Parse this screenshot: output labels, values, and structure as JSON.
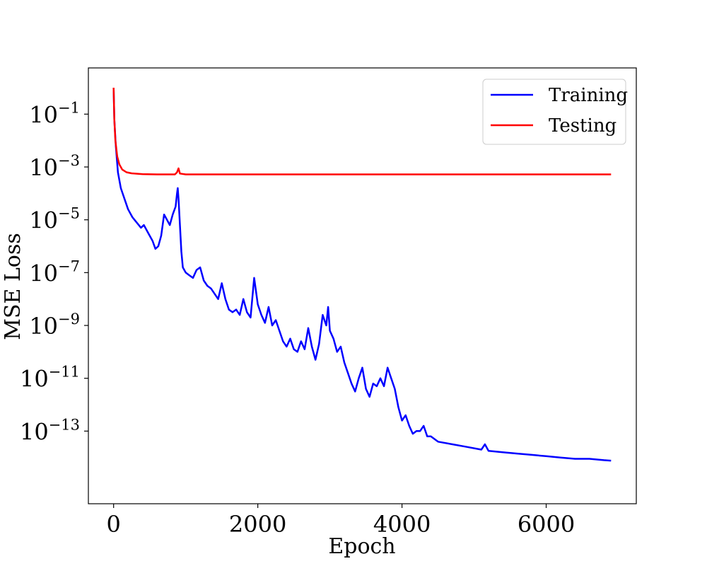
{
  "chart_data": {
    "type": "line",
    "xlabel": "Epoch",
    "ylabel": "MSE Loss",
    "y_scale": "log",
    "grid": false,
    "legend_placement": "top-right",
    "xlim": [
      -350,
      7250
    ],
    "ylim_exponent": [
      -15.75,
      0.75
    ],
    "x_ticks": [
      0,
      2000,
      4000,
      6000
    ],
    "x_tick_labels": [
      "0",
      "2000",
      "4000",
      "6000"
    ],
    "y_ticks": [
      -1,
      -3,
      -5,
      -7,
      -9,
      -11,
      -13
    ],
    "y_tick_labels": [
      {
        "base": "10",
        "exp": "−1"
      },
      {
        "base": "10",
        "exp": "−3"
      },
      {
        "base": "10",
        "exp": "−5"
      },
      {
        "base": "10",
        "exp": "−7"
      },
      {
        "base": "10",
        "exp": "−9"
      },
      {
        "base": "10",
        "exp": "−11"
      },
      {
        "base": "10",
        "exp": "−13"
      }
    ],
    "series": [
      {
        "name": "Training",
        "color": "#0000ff",
        "points": [
          [
            0,
            0.0
          ],
          [
            10,
            -1.2
          ],
          [
            30,
            -2.2
          ],
          [
            60,
            -3.2
          ],
          [
            100,
            -3.8
          ],
          [
            150,
            -4.2
          ],
          [
            200,
            -4.6
          ],
          [
            260,
            -4.9
          ],
          [
            320,
            -5.1
          ],
          [
            380,
            -5.3
          ],
          [
            420,
            -5.2
          ],
          [
            460,
            -5.4
          ],
          [
            500,
            -5.6
          ],
          [
            540,
            -5.8
          ],
          [
            580,
            -6.1
          ],
          [
            620,
            -6.0
          ],
          [
            660,
            -5.6
          ],
          [
            700,
            -4.8
          ],
          [
            740,
            -5.0
          ],
          [
            780,
            -5.2
          ],
          [
            820,
            -4.8
          ],
          [
            860,
            -4.5
          ],
          [
            880,
            -4.0
          ],
          [
            890,
            -3.8
          ],
          [
            900,
            -4.2
          ],
          [
            920,
            -5.2
          ],
          [
            940,
            -6.2
          ],
          [
            960,
            -6.8
          ],
          [
            1000,
            -7.0
          ],
          [
            1050,
            -7.1
          ],
          [
            1100,
            -7.2
          ],
          [
            1150,
            -6.9
          ],
          [
            1200,
            -6.8
          ],
          [
            1250,
            -7.3
          ],
          [
            1300,
            -7.5
          ],
          [
            1350,
            -7.6
          ],
          [
            1400,
            -7.8
          ],
          [
            1450,
            -8.0
          ],
          [
            1500,
            -7.4
          ],
          [
            1550,
            -8.0
          ],
          [
            1600,
            -8.4
          ],
          [
            1650,
            -8.5
          ],
          [
            1700,
            -8.4
          ],
          [
            1750,
            -8.6
          ],
          [
            1800,
            -8.0
          ],
          [
            1850,
            -8.5
          ],
          [
            1900,
            -8.7
          ],
          [
            1950,
            -7.2
          ],
          [
            2000,
            -8.2
          ],
          [
            2050,
            -8.6
          ],
          [
            2100,
            -8.9
          ],
          [
            2150,
            -8.3
          ],
          [
            2200,
            -9.0
          ],
          [
            2250,
            -8.8
          ],
          [
            2300,
            -9.2
          ],
          [
            2350,
            -9.6
          ],
          [
            2400,
            -9.8
          ],
          [
            2450,
            -9.5
          ],
          [
            2500,
            -9.9
          ],
          [
            2550,
            -10.0
          ],
          [
            2600,
            -9.6
          ],
          [
            2650,
            -9.9
          ],
          [
            2700,
            -9.1
          ],
          [
            2750,
            -9.8
          ],
          [
            2800,
            -10.3
          ],
          [
            2850,
            -9.7
          ],
          [
            2900,
            -8.6
          ],
          [
            2950,
            -9.0
          ],
          [
            2975,
            -8.3
          ],
          [
            3000,
            -9.2
          ],
          [
            3050,
            -9.5
          ],
          [
            3100,
            -10.0
          ],
          [
            3150,
            -9.8
          ],
          [
            3200,
            -10.4
          ],
          [
            3250,
            -10.8
          ],
          [
            3300,
            -11.2
          ],
          [
            3350,
            -11.5
          ],
          [
            3400,
            -11.0
          ],
          [
            3450,
            -10.6
          ],
          [
            3500,
            -11.4
          ],
          [
            3550,
            -11.7
          ],
          [
            3600,
            -11.2
          ],
          [
            3650,
            -11.3
          ],
          [
            3700,
            -11.0
          ],
          [
            3750,
            -11.3
          ],
          [
            3800,
            -10.6
          ],
          [
            3850,
            -11.0
          ],
          [
            3900,
            -11.4
          ],
          [
            3950,
            -12.1
          ],
          [
            4000,
            -12.6
          ],
          [
            4050,
            -12.4
          ],
          [
            4100,
            -12.8
          ],
          [
            4150,
            -13.1
          ],
          [
            4200,
            -13.0
          ],
          [
            4250,
            -13.0
          ],
          [
            4300,
            -12.8
          ],
          [
            4350,
            -13.2
          ],
          [
            4400,
            -13.2
          ],
          [
            4500,
            -13.4
          ],
          [
            4700,
            -13.5
          ],
          [
            4900,
            -13.6
          ],
          [
            5100,
            -13.7
          ],
          [
            5150,
            -13.5
          ],
          [
            5200,
            -13.75
          ],
          [
            5400,
            -13.8
          ],
          [
            5600,
            -13.85
          ],
          [
            5800,
            -13.9
          ],
          [
            6000,
            -13.95
          ],
          [
            6200,
            -14.0
          ],
          [
            6400,
            -14.05
          ],
          [
            6600,
            -14.05
          ],
          [
            6800,
            -14.1
          ],
          [
            6900,
            -14.12
          ]
        ]
      },
      {
        "name": "Testing",
        "color": "#ff0000",
        "points": [
          [
            0,
            0.0
          ],
          [
            10,
            -1.2
          ],
          [
            25,
            -2.0
          ],
          [
            50,
            -2.6
          ],
          [
            80,
            -2.9
          ],
          [
            120,
            -3.1
          ],
          [
            180,
            -3.2
          ],
          [
            250,
            -3.24
          ],
          [
            400,
            -3.27
          ],
          [
            600,
            -3.28
          ],
          [
            850,
            -3.28
          ],
          [
            880,
            -3.2
          ],
          [
            900,
            -3.05
          ],
          [
            920,
            -3.25
          ],
          [
            1000,
            -3.28
          ],
          [
            1500,
            -3.28
          ],
          [
            2500,
            -3.28
          ],
          [
            4000,
            -3.28
          ],
          [
            6000,
            -3.28
          ],
          [
            6900,
            -3.28
          ]
        ]
      }
    ]
  }
}
